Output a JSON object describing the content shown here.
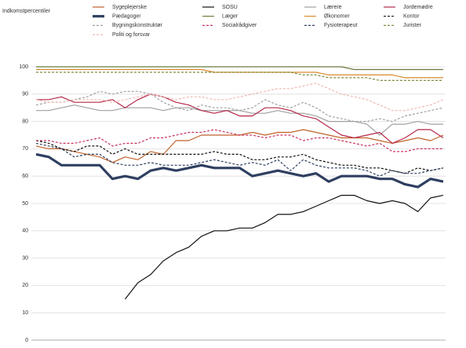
{
  "chart_data": {
    "type": "line",
    "y_label": "Indkomstpercentiler",
    "categories": [
      null,
      null,
      null,
      null,
      null,
      null,
      null,
      null,
      null,
      null,
      null,
      null,
      null,
      null,
      null,
      null,
      null,
      null,
      null,
      null,
      null,
      null,
      null,
      null,
      null,
      null,
      null,
      null,
      null,
      null,
      null,
      null,
      null
    ],
    "ylim": [
      0,
      100
    ],
    "yticks": [
      0,
      10,
      20,
      30,
      40,
      50,
      60,
      70,
      80,
      90,
      100
    ],
    "grid": true,
    "series": [
      {
        "name": "Sygeplejerske",
        "color": "#c0622a",
        "dashed": false,
        "width": 1.2,
        "values": [
          71,
          70,
          70,
          69,
          68,
          67,
          65,
          67,
          66,
          69,
          68,
          73,
          73,
          75,
          75,
          75,
          75,
          76,
          75,
          76,
          76,
          77,
          76,
          75,
          74,
          74,
          74,
          73,
          72,
          73,
          74,
          73,
          75
        ]
      },
      {
        "name": "SOSU",
        "color": "#111111",
        "dashed": false,
        "width": 1.2,
        "values": [
          null,
          null,
          null,
          null,
          null,
          null,
          null,
          15,
          21,
          24,
          29,
          32,
          34,
          38,
          40,
          40,
          41,
          41,
          43,
          46,
          46,
          47,
          49,
          51,
          53,
          53,
          51,
          50,
          51,
          50,
          47,
          52,
          53
        ]
      },
      {
        "name": "Lærere",
        "color": "#a0a0a0",
        "dashed": false,
        "width": 1.2,
        "values": [
          84,
          84,
          85,
          86,
          85,
          84,
          84,
          85,
          85,
          85,
          84,
          85,
          85,
          84,
          84,
          84,
          84,
          83,
          83,
          84,
          83,
          83,
          82,
          80,
          80,
          80,
          79,
          75,
          79,
          79,
          80,
          79,
          79
        ]
      },
      {
        "name": "Jordemødre",
        "color": "#b5284a",
        "dashed": false,
        "width": 1.2,
        "values": [
          88,
          88,
          89,
          87,
          87,
          87,
          88,
          85,
          88,
          90,
          89,
          87,
          86,
          84,
          83,
          84,
          82,
          82,
          85,
          85,
          84,
          82,
          81,
          78,
          75,
          74,
          75,
          76,
          72,
          74,
          77,
          77,
          74
        ]
      },
      {
        "name": "Pædagoger",
        "color": "#2e3f60",
        "dashed": false,
        "width": 3.2,
        "values": [
          68,
          67,
          64,
          64,
          64,
          64,
          59,
          60,
          59,
          62,
          63,
          62,
          63,
          64,
          63,
          63,
          63,
          60,
          61,
          62,
          61,
          60,
          61,
          58,
          60,
          60,
          60,
          59,
          59,
          57,
          56,
          59,
          58
        ]
      },
      {
        "name": "Læger",
        "color": "#6b7a3a",
        "dashed": false,
        "width": 1.2,
        "values": [
          100,
          100,
          100,
          100,
          100,
          100,
          100,
          100,
          100,
          100,
          100,
          100,
          100,
          100,
          100,
          100,
          100,
          100,
          100,
          100,
          100,
          100,
          100,
          100,
          100,
          99,
          99,
          99,
          99,
          99,
          99,
          99,
          99
        ]
      },
      {
        "name": "Økonomer",
        "color": "#d98a2b",
        "dashed": false,
        "width": 1.2,
        "values": [
          99,
          99,
          99,
          99,
          99,
          99,
          99,
          99,
          99,
          99,
          99,
          99,
          99,
          99,
          98,
          98,
          98,
          98,
          98,
          98,
          98,
          98,
          98,
          97,
          97,
          97,
          97,
          97,
          97,
          96,
          96,
          96,
          96
        ]
      },
      {
        "name": "Kontor",
        "color": "#111111",
        "dashed": true,
        "width": 1.2,
        "values": [
          73,
          72,
          70,
          69,
          71,
          71,
          68,
          70,
          68,
          68,
          68,
          68,
          68,
          68,
          69,
          68,
          68,
          66,
          66,
          67,
          67,
          68,
          66,
          65,
          64,
          64,
          63,
          63,
          62,
          61,
          63,
          62,
          63
        ]
      },
      {
        "name": "Bygningskonstruktør",
        "color": "#a0a0a0",
        "dashed": true,
        "width": 1.2,
        "values": [
          86,
          87,
          87,
          88,
          89,
          91,
          90,
          91,
          91,
          90,
          87,
          85,
          84,
          86,
          85,
          85,
          84,
          85,
          88,
          86,
          85,
          87,
          85,
          82,
          81,
          80,
          80,
          81,
          80,
          82,
          83,
          84,
          85
        ]
      },
      {
        "name": "Socialrådgiver",
        "color": "#c8325a",
        "dashed": true,
        "width": 1.2,
        "values": [
          73,
          73,
          72,
          72,
          73,
          74,
          71,
          72,
          72,
          74,
          74,
          75,
          76,
          76,
          77,
          76,
          75,
          75,
          74,
          75,
          75,
          73,
          74,
          74,
          73,
          72,
          71,
          72,
          69,
          69,
          70,
          70,
          70
        ]
      },
      {
        "name": "Fysioterapeut",
        "color": "#2e3f60",
        "dashed": true,
        "width": 1.2,
        "values": [
          72,
          71,
          70,
          67,
          68,
          68,
          65,
          64,
          64,
          65,
          64,
          64,
          64,
          65,
          66,
          65,
          64,
          65,
          64,
          66,
          62,
          66,
          64,
          63,
          63,
          63,
          62,
          60,
          62,
          61,
          61,
          62,
          63
        ]
      },
      {
        "name": "Jurister",
        "color": "#7d8a3e",
        "dashed": true,
        "width": 1.2,
        "values": [
          98,
          98,
          98,
          98,
          98,
          98,
          98,
          98,
          98,
          98,
          98,
          98,
          98,
          98,
          98,
          98,
          98,
          98,
          98,
          98,
          98,
          97,
          97,
          96,
          96,
          96,
          96,
          95,
          95,
          95,
          95,
          95,
          95
        ]
      },
      {
        "name": "Politi og forsvar",
        "color": "#f0b8b0",
        "dashed": true,
        "width": 1.2,
        "values": [
          88,
          87,
          87,
          88,
          88,
          88,
          87,
          88,
          89,
          90,
          89,
          88,
          89,
          89,
          88,
          88,
          89,
          90,
          91,
          92,
          92,
          93,
          94,
          92,
          90,
          89,
          88,
          86,
          84,
          84,
          85,
          86,
          88
        ]
      }
    ]
  }
}
